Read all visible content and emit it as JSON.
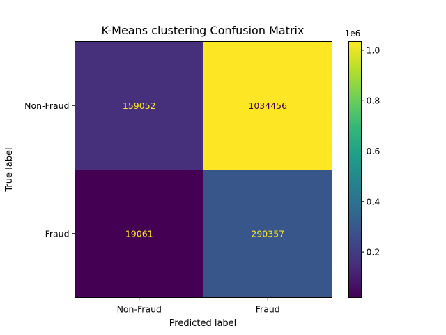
{
  "chart_data": {
    "type": "heatmap",
    "title": "K-Means clustering Confusion Matrix",
    "xlabel": "Predicted label",
    "ylabel": "True label",
    "x_categories": [
      "Non-Fraud",
      "Fraud"
    ],
    "y_categories": [
      "Non-Fraud",
      "Fraud"
    ],
    "values": [
      [
        159052,
        1034456
      ],
      [
        19061,
        290357
      ]
    ],
    "colormap": "viridis",
    "colorbar": {
      "ticks": [
        0.2,
        0.4,
        0.6,
        0.8,
        1.0
      ],
      "tick_labels": [
        "0.2",
        "0.4",
        "0.6",
        "0.8",
        "1.0"
      ],
      "multiplier_label": "1e6"
    },
    "text_colors": {
      "on_dark": "#fde725",
      "on_light": "#440154"
    }
  }
}
